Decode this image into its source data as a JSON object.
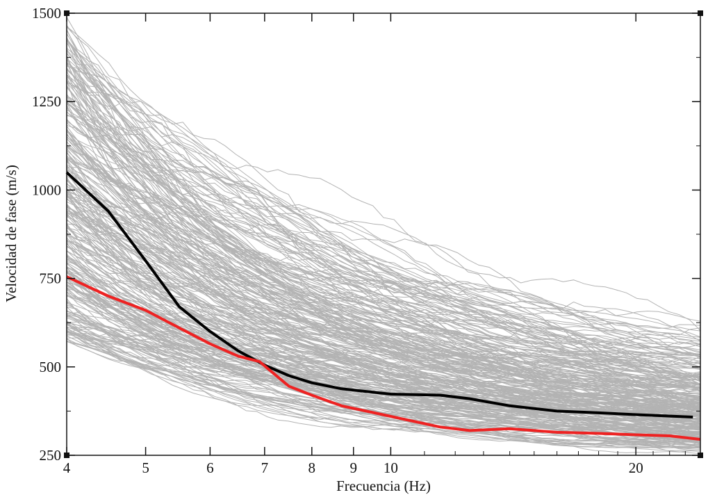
{
  "chart_data": {
    "type": "line",
    "title": "",
    "xlabel": "Frecuencia (Hz)",
    "ylabel": "Velocidad de fase (m/s)",
    "x_scale": "log",
    "xlim": [
      4,
      24
    ],
    "ylim": [
      250,
      1500
    ],
    "x_ticks": [
      4,
      5,
      6,
      7,
      8,
      9,
      10,
      20
    ],
    "y_ticks": [
      250,
      500,
      750,
      1000,
      1250,
      1500
    ],
    "grid": false,
    "legend": "none",
    "background_curves": {
      "description_count": 300,
      "color": "#b3b3b3",
      "velocity_at_4hz_range": [
        580,
        1480
      ],
      "velocity_at_24hz_range": [
        260,
        620
      ]
    },
    "series": [
      {
        "color": "#000000",
        "x": [
          4,
          4.5,
          5,
          5.5,
          6,
          6.5,
          7,
          7.5,
          8,
          8.7,
          10,
          11.5,
          12.5,
          14,
          16,
          18,
          20,
          23.5
        ],
        "y": [
          1050,
          940,
          800,
          670,
          600,
          545,
          505,
          475,
          455,
          438,
          423,
          420,
          410,
          390,
          375,
          370,
          365,
          358
        ]
      },
      {
        "color": "#ee2222",
        "x": [
          4,
          4.5,
          5,
          5.5,
          6,
          6.5,
          6.9,
          7.5,
          8,
          8.7,
          10,
          11.5,
          12.5,
          14,
          16,
          18,
          20,
          22,
          24
        ],
        "y": [
          755,
          700,
          660,
          610,
          565,
          530,
          515,
          445,
          420,
          390,
          360,
          330,
          320,
          325,
          315,
          312,
          308,
          305,
          295
        ]
      }
    ]
  }
}
